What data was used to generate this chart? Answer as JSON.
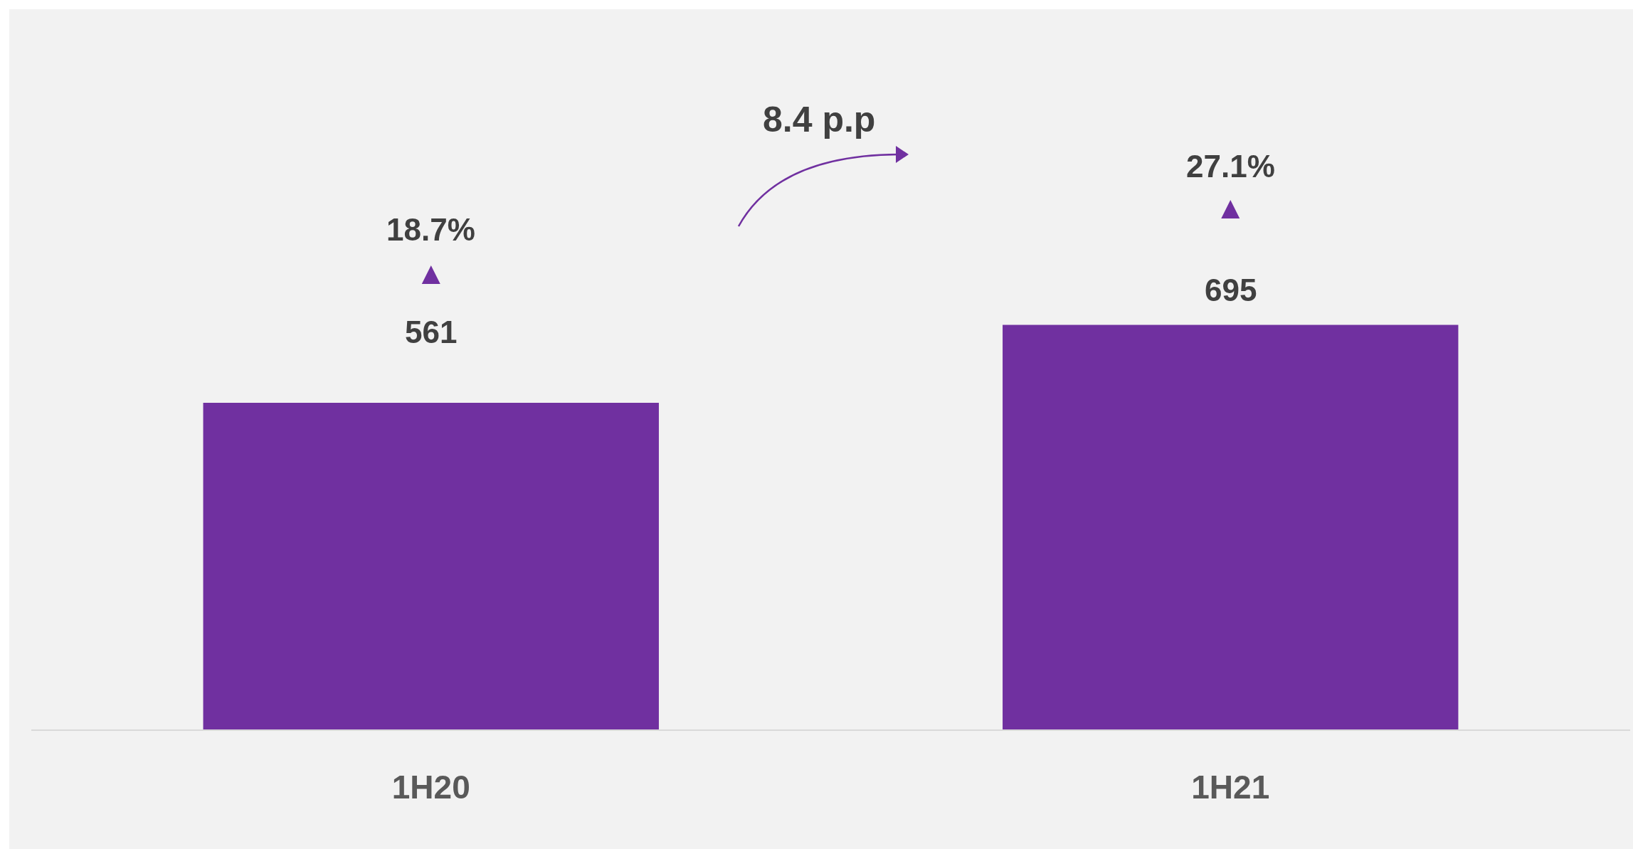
{
  "chart_data": {
    "type": "bar",
    "categories": [
      "1H20",
      "1H21"
    ],
    "values": [
      561,
      695
    ],
    "color": "#7030a0",
    "data_labels": true,
    "annotations": [
      "18.7%",
      "27.1%",
      "8.4 p.p"
    ]
  }
}
